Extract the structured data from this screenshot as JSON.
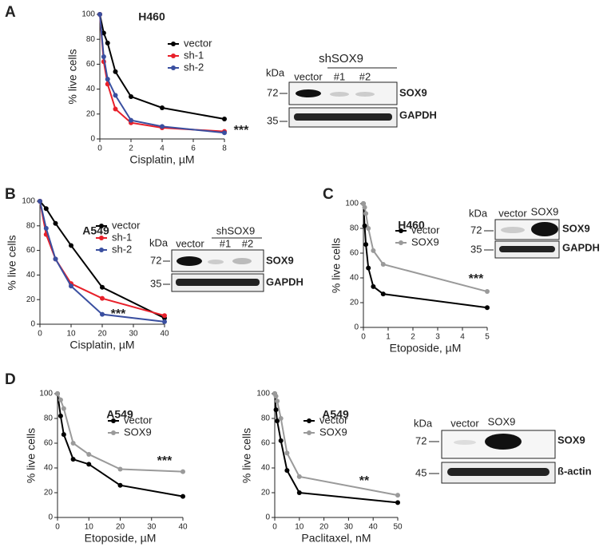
{
  "panel_labels": [
    "A",
    "B",
    "C",
    "D"
  ],
  "chart_data": [
    {
      "type": "line",
      "title": "H460",
      "x_label": "Cisplatin, µM",
      "y_label": "% live cells",
      "x": [
        0,
        0.25,
        0.5,
        1,
        2,
        4,
        8
      ],
      "xlim": [
        0,
        8
      ],
      "xticks": [
        0,
        2,
        4,
        6,
        8
      ],
      "ylim": [
        0,
        100
      ],
      "yticks": [
        0,
        20,
        40,
        60,
        80,
        100
      ],
      "series": [
        {
          "name": "vector",
          "color": "#000000",
          "values": [
            100,
            85,
            77,
            54,
            34,
            25,
            16
          ]
        },
        {
          "name": "sh-1",
          "color": "#e8202a",
          "values": [
            100,
            62,
            44,
            24,
            13,
            9,
            6
          ]
        },
        {
          "name": "sh-2",
          "color": "#3a4fa0",
          "values": [
            100,
            66,
            48,
            35,
            15,
            10,
            5
          ]
        }
      ],
      "annotation": "***"
    },
    {
      "type": "line",
      "title": "A549",
      "x_label": "Cisplatin, µM",
      "y_label": "% live cells",
      "x": [
        0,
        2,
        5,
        10,
        20,
        40
      ],
      "xlim": [
        0,
        40
      ],
      "xticks": [
        0,
        10,
        20,
        30,
        40
      ],
      "ylim": [
        0,
        100
      ],
      "yticks": [
        0,
        20,
        40,
        60,
        80,
        100
      ],
      "series": [
        {
          "name": "vector",
          "color": "#000000",
          "values": [
            100,
            94,
            82,
            64,
            30,
            5
          ]
        },
        {
          "name": "sh-1",
          "color": "#e8202a",
          "values": [
            100,
            73,
            53,
            33,
            21,
            7
          ]
        },
        {
          "name": "sh-2",
          "color": "#3a4fa0",
          "values": [
            100,
            78,
            53,
            31,
            8,
            2
          ]
        }
      ],
      "annotation": "***"
    },
    {
      "type": "line",
      "title": "H460",
      "x_label": "Etoposide, µM",
      "y_label": "% live cells",
      "x": [
        0,
        0.05,
        0.1,
        0.2,
        0.4,
        0.8,
        5
      ],
      "xlim": [
        0,
        5
      ],
      "xticks": [
        0,
        1,
        2,
        3,
        4,
        5
      ],
      "ylim": [
        0,
        100
      ],
      "yticks": [
        0,
        20,
        40,
        60,
        80,
        100
      ],
      "series": [
        {
          "name": "vector",
          "color": "#000000",
          "values": [
            100,
            82,
            67,
            48,
            33,
            27,
            16
          ]
        },
        {
          "name": "SOX9",
          "color": "#9a9a9a",
          "values": [
            100,
            97,
            92,
            80,
            62,
            51,
            29
          ]
        }
      ],
      "annotation": "***"
    },
    {
      "type": "line",
      "title": "A549",
      "x_label": "Etoposide, µM",
      "y_label": "% live cells",
      "x": [
        0,
        1,
        2,
        5,
        10,
        20,
        40
      ],
      "xlim": [
        0,
        40
      ],
      "xticks": [
        0,
        10,
        20,
        30,
        40
      ],
      "ylim": [
        0,
        100
      ],
      "yticks": [
        0,
        20,
        40,
        60,
        80,
        100
      ],
      "series": [
        {
          "name": "vector",
          "color": "#000000",
          "values": [
            100,
            82,
            67,
            47,
            43,
            26,
            17
          ]
        },
        {
          "name": "SOX9",
          "color": "#9a9a9a",
          "values": [
            100,
            95,
            88,
            60,
            51,
            39,
            37
          ]
        }
      ],
      "annotation": "***"
    },
    {
      "type": "line",
      "title": "A549",
      "x_label": "Paclitaxel, nM",
      "y_label": "% live cells",
      "x": [
        0,
        0.5,
        1,
        2.5,
        5,
        10,
        50
      ],
      "xlim": [
        0,
        50
      ],
      "xticks": [
        0,
        10,
        20,
        30,
        40,
        50
      ],
      "ylim": [
        0,
        100
      ],
      "yticks": [
        0,
        20,
        40,
        60,
        80,
        100
      ],
      "series": [
        {
          "name": "vector",
          "color": "#000000",
          "values": [
            100,
            87,
            78,
            62,
            38,
            20,
            12
          ]
        },
        {
          "name": "SOX9",
          "color": "#9a9a9a",
          "values": [
            100,
            98,
            94,
            80,
            52,
            33,
            18
          ]
        }
      ],
      "annotation": "**"
    }
  ],
  "blots": [
    {
      "kda": "kDa",
      "group": "shSOX9",
      "lanes": [
        "vector",
        "#1",
        "#2"
      ],
      "markers": [
        "72",
        "35"
      ],
      "proteins": [
        "SOX9",
        "GAPDH"
      ]
    },
    {
      "kda": "kDa",
      "group": "shSOX9",
      "lanes": [
        "vector",
        "#1",
        "#2"
      ],
      "markers": [
        "72",
        "35"
      ],
      "proteins": [
        "SOX9",
        "GAPDH"
      ]
    },
    {
      "kda": "kDa",
      "lanes": [
        "vector",
        "SOX9"
      ],
      "markers": [
        "72",
        "35"
      ],
      "proteins": [
        "SOX9",
        "GAPDH"
      ]
    },
    {
      "kda": "kDa",
      "lanes": [
        "vector",
        "SOX9"
      ],
      "markers": [
        "72",
        "45"
      ],
      "proteins": [
        "SOX9",
        "ß-actin"
      ]
    }
  ]
}
